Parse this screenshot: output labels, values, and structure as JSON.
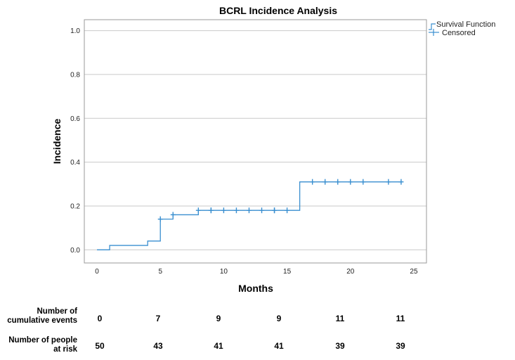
{
  "chart_data": {
    "type": "line",
    "title": "BCRL Incidence Analysis",
    "xlabel": "Months",
    "ylabel": "Incidence",
    "xlim": [
      -1,
      26
    ],
    "ylim": [
      -0.06,
      1.05
    ],
    "x_ticks": [
      0,
      5,
      10,
      15,
      20,
      25
    ],
    "x_tick_labels": [
      "0",
      "5",
      "10",
      "15",
      "20",
      "25"
    ],
    "y_ticks": [
      0.0,
      0.2,
      0.4,
      0.6,
      0.8,
      1.0
    ],
    "y_tick_labels": [
      "0.0",
      "0.2",
      "0.4",
      "0.6",
      "0.8",
      "1.0"
    ],
    "grid": "horizontal",
    "legend_position": "top-right",
    "series": [
      {
        "name": "Survival Function",
        "style": "step",
        "x": [
          0,
          1,
          4,
          5,
          6,
          8,
          16,
          24
        ],
        "y": [
          0.0,
          0.02,
          0.04,
          0.14,
          0.16,
          0.18,
          0.31,
          0.31
        ]
      },
      {
        "name": "Censored",
        "style": "marker-plus",
        "x": [
          5,
          6,
          8,
          9,
          9,
          10,
          11,
          12,
          13,
          14,
          14,
          15,
          17,
          18,
          19,
          20,
          21,
          23,
          24
        ],
        "y": [
          0.14,
          0.16,
          0.18,
          0.18,
          0.18,
          0.18,
          0.18,
          0.18,
          0.18,
          0.18,
          0.18,
          0.18,
          0.31,
          0.31,
          0.31,
          0.31,
          0.31,
          0.31,
          0.31
        ]
      }
    ],
    "color": "#3a8fd0"
  },
  "risk_table": {
    "time_points": [
      0,
      5,
      10,
      15,
      20,
      25
    ],
    "rows": [
      {
        "label_line1": "Number of",
        "label_line2": "cumulative events",
        "values": [
          "0",
          "7",
          "9",
          "9",
          "11",
          "11"
        ]
      },
      {
        "label_line1": "Number of people",
        "label_line2": "at risk",
        "values": [
          "50",
          "43",
          "41",
          "41",
          "39",
          "39"
        ]
      }
    ]
  }
}
